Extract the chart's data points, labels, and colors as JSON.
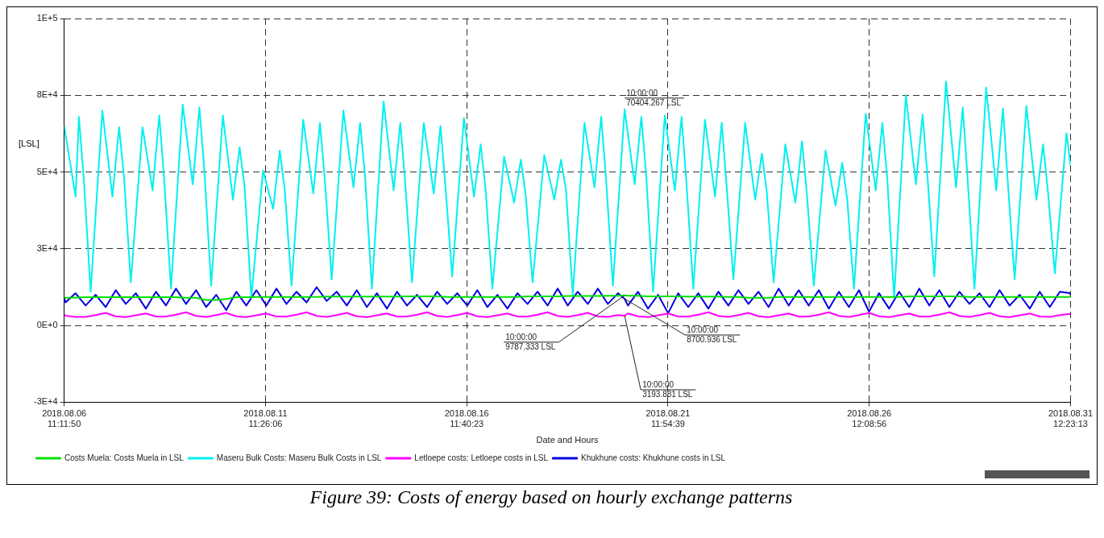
{
  "chart_data": {
    "type": "line",
    "xlabel": "Date and Hours",
    "ylabel": "[LSL]",
    "xlim": [
      "2018-08-06T11:12",
      "2018-08-31T12:23"
    ],
    "xticks": [
      {
        "value": "2018-08-06T11:12",
        "label": "2018.08.06 11:11:50"
      },
      {
        "value": "2018-08-11T11:26",
        "label": "2018.08.11 11:26:06"
      },
      {
        "value": "2018-08-16T11:40",
        "label": "2018.08.16 11:40:23"
      },
      {
        "value": "2018-08-21T11:55",
        "label": "2018.08.21 11:54:39"
      },
      {
        "value": "2018-08-26T12:09",
        "label": "2018.08.26 12:08:56"
      },
      {
        "value": "2018-08-31T12:23",
        "label": "2018.08.31 12:23:13"
      }
    ],
    "ylim": [
      -25000,
      100000
    ],
    "yticks": [
      {
        "value": -25000,
        "label": "-3E+4"
      },
      {
        "value": 0,
        "label": "0E+0"
      },
      {
        "value": 25000,
        "label": "3E+4"
      },
      {
        "value": 50000,
        "label": "5E+4"
      },
      {
        "value": 75000,
        "label": "8E+4"
      },
      {
        "value": 100000,
        "label": "1E+5"
      }
    ],
    "grid": true,
    "legend": "bottom left",
    "marker": "none",
    "line_style": "solid",
    "x": [
      "2018-08-06T11:12",
      "2018-08-06T12:00",
      "2018-08-06T18:00",
      "2018-08-07T00:00",
      "2018-08-07T06:00",
      "2018-08-07T12:00",
      "2018-08-07T18:00",
      "2018-08-08T00:00",
      "2018-08-08T06:00",
      "2018-08-08T12:00",
      "2018-08-08T18:00",
      "2018-08-09T00:00",
      "2018-08-09T06:00",
      "2018-08-09T12:00",
      "2018-08-09T18:00",
      "2018-08-10T00:00",
      "2018-08-10T06:00",
      "2018-08-10T12:00",
      "2018-08-10T18:00",
      "2018-08-11T00:00",
      "2018-08-11T06:00",
      "2018-08-11T12:00",
      "2018-08-11T18:00",
      "2018-08-12T00:00",
      "2018-08-12T06:00",
      "2018-08-12T12:00",
      "2018-08-12T18:00",
      "2018-08-13T00:00",
      "2018-08-13T06:00",
      "2018-08-13T12:00",
      "2018-08-13T18:00",
      "2018-08-14T00:00",
      "2018-08-14T06:00",
      "2018-08-14T12:00",
      "2018-08-14T18:00",
      "2018-08-15T00:00",
      "2018-08-15T06:00",
      "2018-08-15T12:00",
      "2018-08-15T18:00",
      "2018-08-16T00:00",
      "2018-08-16T06:00",
      "2018-08-16T12:00",
      "2018-08-16T18:00",
      "2018-08-17T00:00",
      "2018-08-17T06:00",
      "2018-08-17T12:00",
      "2018-08-17T18:00",
      "2018-08-18T00:00",
      "2018-08-18T06:00",
      "2018-08-18T12:00",
      "2018-08-18T18:00",
      "2018-08-19T00:00",
      "2018-08-19T06:00",
      "2018-08-19T12:00",
      "2018-08-19T18:00",
      "2018-08-20T00:00",
      "2018-08-20T06:00",
      "2018-08-20T10:00",
      "2018-08-20T12:00",
      "2018-08-20T18:00",
      "2018-08-21T00:00",
      "2018-08-21T06:00",
      "2018-08-21T12:00",
      "2018-08-21T18:00",
      "2018-08-22T00:00",
      "2018-08-22T06:00",
      "2018-08-22T12:00",
      "2018-08-22T18:00",
      "2018-08-23T00:00",
      "2018-08-23T06:00",
      "2018-08-23T12:00",
      "2018-08-23T18:00",
      "2018-08-24T00:00",
      "2018-08-24T06:00",
      "2018-08-24T12:00",
      "2018-08-24T18:00",
      "2018-08-25T00:00",
      "2018-08-25T06:00",
      "2018-08-25T12:00",
      "2018-08-25T18:00",
      "2018-08-26T00:00",
      "2018-08-26T06:00",
      "2018-08-26T12:00",
      "2018-08-26T18:00",
      "2018-08-27T00:00",
      "2018-08-27T06:00",
      "2018-08-27T12:00",
      "2018-08-27T18:00",
      "2018-08-28T00:00",
      "2018-08-28T06:00",
      "2018-08-28T12:00",
      "2018-08-28T18:00",
      "2018-08-29T00:00",
      "2018-08-29T06:00",
      "2018-08-29T12:00",
      "2018-08-29T18:00",
      "2018-08-30T00:00",
      "2018-08-30T06:00",
      "2018-08-30T12:00",
      "2018-08-30T18:00",
      "2018-08-31T00:00",
      "2018-08-31T06:00",
      "2018-08-31T12:00",
      "2018-08-31T12:23"
    ],
    "series": [
      {
        "name": "Costs Muela: Costs Muela in LSL",
        "color": "#00e000",
        "values": [
          9000,
          9000,
          9100,
          9200,
          9200,
          9200,
          9200,
          9200,
          9200,
          9200,
          9200,
          9200,
          9200,
          9000,
          9000,
          8300,
          8300,
          8600,
          9200,
          9200,
          9300,
          9300,
          9300,
          9300,
          9300,
          9300,
          9300,
          9400,
          9400,
          9400,
          9400,
          9400,
          9400,
          9400,
          9400,
          9500,
          9500,
          9500,
          9500,
          9300,
          9300,
          9300,
          9300,
          9300,
          9300,
          9300,
          9300,
          9500,
          9500,
          9500,
          9500,
          9600,
          9600,
          9600,
          9600,
          9700,
          9700,
          9787.333,
          9700,
          9700,
          9500,
          9500,
          9500,
          9500,
          9400,
          9400,
          9400,
          9400,
          9300,
          9300,
          9000,
          9000,
          9000,
          9300,
          9300,
          9300,
          9300,
          9300,
          9300,
          9300,
          9300,
          9300,
          9300,
          9300,
          9300,
          9300,
          9500,
          9500,
          9500,
          9500,
          9500,
          9500,
          9300,
          9300,
          9300,
          9300,
          9300,
          9300,
          9300,
          9300,
          9300,
          9300,
          9300,
          9300
        ]
      },
      {
        "name": "Maseru Bulk Costs: Maseru Bulk Costs in LSL",
        "color": "#00f0f0",
        "x": [
          "2018-08-06T11:12",
          "2018-08-06T18:00",
          "2018-08-06T20:00",
          "2018-08-06T23:00",
          "2018-08-07T03:00",
          "2018-08-07T10:00",
          "2018-08-07T16:00",
          "2018-08-07T20:00",
          "2018-08-07T23:00",
          "2018-08-08T03:00",
          "2018-08-08T10:00",
          "2018-08-08T16:00",
          "2018-08-08T20:00",
          "2018-08-08T23:00",
          "2018-08-09T03:00",
          "2018-08-09T10:00",
          "2018-08-09T16:00",
          "2018-08-09T20:00",
          "2018-08-09T23:00",
          "2018-08-10T03:00",
          "2018-08-10T10:00",
          "2018-08-10T16:00",
          "2018-08-10T20:00",
          "2018-08-10T23:00",
          "2018-08-11T03:00",
          "2018-08-11T10:00",
          "2018-08-11T16:00",
          "2018-08-11T20:00",
          "2018-08-11T23:00",
          "2018-08-12T03:00",
          "2018-08-12T10:00",
          "2018-08-12T16:00",
          "2018-08-12T20:00",
          "2018-08-12T23:00",
          "2018-08-13T03:00",
          "2018-08-13T10:00",
          "2018-08-13T16:00",
          "2018-08-13T20:00",
          "2018-08-13T23:00",
          "2018-08-14T03:00",
          "2018-08-14T10:00",
          "2018-08-14T16:00",
          "2018-08-14T20:00",
          "2018-08-14T23:00",
          "2018-08-15T03:00",
          "2018-08-15T10:00",
          "2018-08-15T16:00",
          "2018-08-15T20:00",
          "2018-08-15T23:00",
          "2018-08-16T03:00",
          "2018-08-16T10:00",
          "2018-08-16T16:00",
          "2018-08-16T20:00",
          "2018-08-16T23:00",
          "2018-08-17T03:00",
          "2018-08-17T10:00",
          "2018-08-17T16:00",
          "2018-08-17T20:00",
          "2018-08-17T23:00",
          "2018-08-18T03:00",
          "2018-08-18T10:00",
          "2018-08-18T16:00",
          "2018-08-18T20:00",
          "2018-08-18T23:00",
          "2018-08-19T03:00",
          "2018-08-19T10:00",
          "2018-08-19T16:00",
          "2018-08-19T20:00",
          "2018-08-19T23:00",
          "2018-08-20T03:00",
          "2018-08-20T10:00",
          "2018-08-20T16:00",
          "2018-08-20T20:00",
          "2018-08-20T23:00",
          "2018-08-21T03:00",
          "2018-08-21T10:00",
          "2018-08-21T16:00",
          "2018-08-21T20:00",
          "2018-08-21T23:00",
          "2018-08-22T03:00",
          "2018-08-22T10:00",
          "2018-08-22T16:00",
          "2018-08-22T20:00",
          "2018-08-22T23:00",
          "2018-08-23T03:00",
          "2018-08-23T10:00",
          "2018-08-23T16:00",
          "2018-08-23T20:00",
          "2018-08-23T23:00",
          "2018-08-24T03:00",
          "2018-08-24T10:00",
          "2018-08-24T16:00",
          "2018-08-24T20:00",
          "2018-08-24T23:00",
          "2018-08-25T03:00",
          "2018-08-25T10:00",
          "2018-08-25T16:00",
          "2018-08-25T20:00",
          "2018-08-25T23:00",
          "2018-08-26T03:00",
          "2018-08-26T10:00",
          "2018-08-26T16:00",
          "2018-08-26T20:00",
          "2018-08-26T23:00",
          "2018-08-27T03:00",
          "2018-08-27T10:00",
          "2018-08-27T16:00",
          "2018-08-27T20:00",
          "2018-08-27T23:00",
          "2018-08-28T03:00",
          "2018-08-28T10:00",
          "2018-08-28T16:00",
          "2018-08-28T20:00",
          "2018-08-28T23:00",
          "2018-08-29T03:00",
          "2018-08-29T10:00",
          "2018-08-29T16:00",
          "2018-08-29T20:00",
          "2018-08-29T23:00",
          "2018-08-30T03:00",
          "2018-08-30T10:00",
          "2018-08-30T16:00",
          "2018-08-30T20:00",
          "2018-08-30T23:00",
          "2018-08-31T03:00",
          "2018-08-31T10:00",
          "2018-08-31T12:23"
        ],
        "values": [
          65000,
          42000,
          68000,
          47000,
          11000,
          70000,
          42000,
          64600,
          48000,
          14000,
          64600,
          44000,
          68400,
          47000,
          12000,
          72000,
          46000,
          71000,
          50000,
          13000,
          68400,
          41000,
          58000,
          45000,
          9000,
          50500,
          38000,
          57000,
          44000,
          13000,
          67000,
          43000,
          66000,
          47000,
          15000,
          70000,
          45000,
          66000,
          48000,
          12000,
          73000,
          44000,
          66000,
          46000,
          14000,
          66000,
          43000,
          65000,
          45000,
          16000,
          67600,
          42000,
          59000,
          44000,
          12000,
          55000,
          40000,
          54000,
          42000,
          14000,
          55500,
          41000,
          54000,
          44000,
          10000,
          66000,
          45000,
          68000,
          47000,
          13000,
          70404.267,
          46000,
          68000,
          48000,
          11000,
          68400,
          44000,
          68000,
          46000,
          12000,
          67000,
          42000,
          66000,
          45000,
          15000,
          66000,
          41000,
          56000,
          43000,
          14000,
          59000,
          40000,
          60000,
          42000,
          13000,
          57000,
          39000,
          53000,
          41000,
          12000,
          69000,
          44000,
          66000,
          47000,
          9000,
          75000,
          46000,
          68700,
          48000,
          16000,
          79500,
          45000,
          71000,
          47000,
          12000,
          77500,
          44000,
          70700,
          46000,
          15000,
          71500,
          41000,
          59000,
          43000,
          17000,
          62600,
          52000
        ]
      },
      {
        "name": "Letloepe costs: Letloepe costs in LSL",
        "color": "#ff00ff",
        "values": [
          3500,
          3200,
          2800,
          2800,
          3400,
          4100,
          3000,
          2700,
          3300,
          3900,
          2900,
          2900,
          3500,
          4300,
          3100,
          2800,
          3400,
          4100,
          3000,
          2700,
          3300,
          3900,
          2900,
          2900,
          3500,
          4300,
          3100,
          2800,
          3400,
          4100,
          3000,
          2700,
          3300,
          3900,
          2900,
          2900,
          3500,
          4300,
          3100,
          2800,
          3400,
          4100,
          3000,
          2700,
          3300,
          3900,
          2900,
          2900,
          3500,
          4300,
          3100,
          2800,
          3400,
          4100,
          3000,
          2800,
          3400,
          3193.881,
          3900,
          3000,
          2700,
          3300,
          3900,
          2900,
          2900,
          3500,
          4300,
          3100,
          2800,
          3400,
          4100,
          3000,
          2700,
          3300,
          3900,
          2900,
          2900,
          3500,
          4300,
          3100,
          2800,
          3400,
          4100,
          3000,
          2700,
          3300,
          3900,
          2900,
          2900,
          3500,
          4300,
          3100,
          2800,
          3400,
          4100,
          3000,
          2700,
          3300,
          3900,
          2900,
          2800,
          3400,
          3800,
          3600
        ]
      },
      {
        "name": "Khukhune costs: Khukhune costs in LSL",
        "color": "#0000e0",
        "values": [
          9000,
          7500,
          10500,
          6500,
          10000,
          6000,
          11500,
          7000,
          10500,
          5500,
          11000,
          6500,
          12000,
          7000,
          11500,
          6000,
          10000,
          5000,
          11000,
          6500,
          11500,
          6500,
          12000,
          7000,
          11000,
          7500,
          12500,
          8000,
          11000,
          6500,
          11500,
          6000,
          10500,
          5500,
          11000,
          6500,
          10000,
          6000,
          11000,
          7000,
          10500,
          6500,
          11500,
          6000,
          10000,
          5500,
          10500,
          7000,
          11000,
          6500,
          12000,
          6500,
          11000,
          7000,
          12000,
          7000,
          10500,
          8700.936,
          6500,
          11000,
          5500,
          10000,
          4000,
          10500,
          6000,
          10500,
          5500,
          11000,
          6500,
          11500,
          7000,
          11000,
          6000,
          12000,
          6500,
          11500,
          6500,
          11500,
          5500,
          11000,
          6000,
          11500,
          4500,
          10500,
          5500,
          11000,
          6000,
          12000,
          6500,
          11500,
          6000,
          11000,
          7000,
          10500,
          6000,
          11500,
          6500,
          10000,
          5500,
          11000,
          6000,
          11000,
          10500,
          10000
        ]
      }
    ],
    "annotations": [
      {
        "text": "10:00:00 70404.267 LSL",
        "x": "2018-08-20T10:00",
        "y": 70404.267
      },
      {
        "text": "10:00:00 9787.333 LSL",
        "x": "2018-08-20T10:00",
        "y": 9787.333
      },
      {
        "text": "10:00:00 8700.936 LSL",
        "x": "2018-08-20T10:00",
        "y": 8700.936
      },
      {
        "text": "10:00:00 3193.881 LSL",
        "x": "2018-08-20T10:00",
        "y": 3193.881
      },
      "Figure 39: Costs of energy based on hourly exchange patterns"
    ]
  }
}
